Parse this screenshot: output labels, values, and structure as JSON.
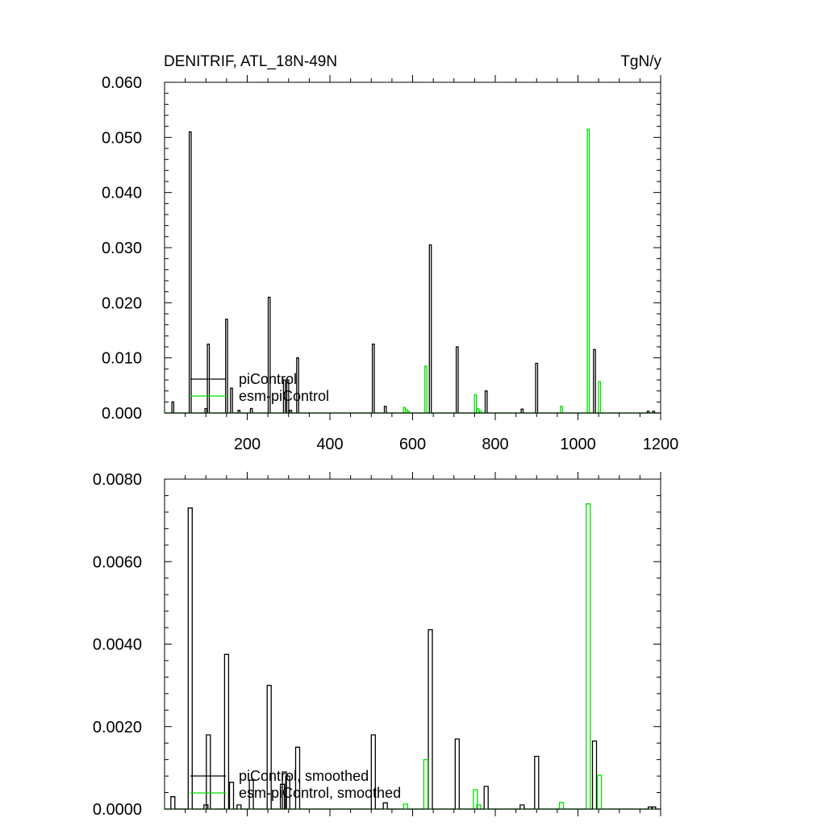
{
  "chart_data": [
    {
      "type": "line",
      "title": "DENITRIF, ATL_18N-49N",
      "units": "TgN/y",
      "xlim": [
        0,
        1200
      ],
      "ylim": [
        0,
        0.06
      ],
      "xticks": [
        200,
        400,
        600,
        800,
        1000,
        1200
      ],
      "yticks": [
        0.0,
        0.01,
        0.02,
        0.03,
        0.04,
        0.05,
        0.06
      ],
      "ytick_labels": [
        "0.000",
        "0.010",
        "0.020",
        "0.030",
        "0.040",
        "0.050",
        "0.060"
      ],
      "xtick_labels": [
        "200",
        "400",
        "600",
        "800",
        "1000",
        "1200"
      ],
      "legend_position": "lower-left",
      "series": [
        {
          "name": "piControl",
          "color": "#000000",
          "spikes": [
            [
              20,
              0.002
            ],
            [
              62,
              0.051
            ],
            [
              100,
              0.0008
            ],
            [
              106,
              0.0125
            ],
            [
              150,
              0.017
            ],
            [
              162,
              0.0045
            ],
            [
              180,
              0.0005
            ],
            [
              210,
              0.0008
            ],
            [
              253,
              0.021
            ],
            [
              290,
              0.006
            ],
            [
              298,
              0.006
            ],
            [
              305,
              0.0005
            ],
            [
              322,
              0.01
            ],
            [
              505,
              0.0125
            ],
            [
              534,
              0.0012
            ],
            [
              643,
              0.0305
            ],
            [
              708,
              0.012
            ],
            [
              778,
              0.004
            ],
            [
              865,
              0.0007
            ],
            [
              900,
              0.009
            ],
            [
              1040,
              0.0115
            ],
            [
              1170,
              0.0003
            ],
            [
              1183,
              0.0003
            ]
          ]
        },
        {
          "name": "esm-piControl",
          "color": "#00dd00",
          "spikes": [
            [
              580,
              0.001
            ],
            [
              585,
              0.0006
            ],
            [
              590,
              0.0003
            ],
            [
              632,
              0.0085
            ],
            [
              752,
              0.0033
            ],
            [
              758,
              0.0008
            ],
            [
              764,
              0.0004
            ],
            [
              960,
              0.0012
            ],
            [
              1025,
              0.0515
            ],
            [
              1052,
              0.0057
            ]
          ]
        }
      ]
    },
    {
      "type": "line",
      "xlim": [
        0,
        1200
      ],
      "ylim": [
        0,
        0.008
      ],
      "yticks": [
        0.0,
        0.002,
        0.004,
        0.006,
        0.008
      ],
      "ytick_labels": [
        "0.0000",
        "0.0020",
        "0.0040",
        "0.0060",
        "0.0080"
      ],
      "legend_position": "lower-left",
      "series": [
        {
          "name": "piControl, smoothed",
          "color": "#000000",
          "spikes": [
            [
              20,
              0.0003
            ],
            [
              62,
              0.0073
            ],
            [
              100,
              0.0001
            ],
            [
              106,
              0.0018
            ],
            [
              150,
              0.00375
            ],
            [
              162,
              0.00065
            ],
            [
              180,
              0.0001
            ],
            [
              210,
              0.0007
            ],
            [
              253,
              0.003
            ],
            [
              285,
              0.0006
            ],
            [
              290,
              0.0009
            ],
            [
              298,
              0.0008
            ],
            [
              322,
              0.0015
            ],
            [
              505,
              0.0018
            ],
            [
              534,
              0.00015
            ],
            [
              643,
              0.00435
            ],
            [
              708,
              0.0017
            ],
            [
              778,
              0.00055
            ],
            [
              865,
              0.0001
            ],
            [
              900,
              0.00128
            ],
            [
              1040,
              0.00165
            ],
            [
              1175,
              5e-05
            ],
            [
              1183,
              5e-05
            ]
          ]
        },
        {
          "name": "esm-piControl, smoothed",
          "color": "#00dd00",
          "spikes": [
            [
              583,
              0.00012
            ],
            [
              632,
              0.0012
            ],
            [
              752,
              0.00047
            ],
            [
              760,
              0.0001
            ],
            [
              960,
              0.00016
            ],
            [
              1025,
              0.0074
            ],
            [
              1052,
              0.00082
            ]
          ]
        }
      ]
    }
  ]
}
